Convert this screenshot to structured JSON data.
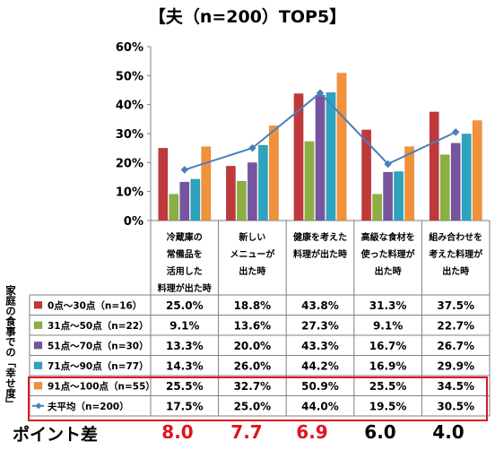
{
  "title": "【夫（n=200）TOP5】",
  "side_label": "家庭の食事での「幸せ度」",
  "point_diff_label": "ポイント差",
  "point_diffs": [
    {
      "value": "8.0",
      "color": "#e0141d"
    },
    {
      "value": "7.7",
      "color": "#e0141d"
    },
    {
      "value": "6.9",
      "color": "#e0141d"
    },
    {
      "value": "6.0",
      "color": "#000000"
    },
    {
      "value": "4.0",
      "color": "#000000"
    }
  ],
  "chart_data": {
    "type": "bar",
    "categories": [
      [
        "冷蔵庫の",
        "常備品を",
        "活用した",
        "料理が出た時"
      ],
      [
        "新しい",
        "メニューが",
        "出た時"
      ],
      [
        "健康を考えた",
        "料理が出た時"
      ],
      [
        "高級な食材を",
        "使った料理が",
        "出た時"
      ],
      [
        "組み合わせを",
        "考えた料理が",
        "出た時"
      ]
    ],
    "series": [
      {
        "name": "0点～30点（n=16）",
        "color": "#c0383a",
        "values": [
          25.0,
          18.8,
          43.8,
          31.3,
          37.5
        ],
        "labels": [
          "25.0%",
          "18.8%",
          "43.8%",
          "31.3%",
          "37.5%"
        ]
      },
      {
        "name": "31点～50点（n=22）",
        "color": "#8bb041",
        "values": [
          9.1,
          13.6,
          27.3,
          9.1,
          22.7
        ],
        "labels": [
          "9.1%",
          "13.6%",
          "27.3%",
          "9.1%",
          "22.7%"
        ]
      },
      {
        "name": "51点～70点（n=30）",
        "color": "#7555a0",
        "values": [
          13.3,
          20.0,
          43.3,
          16.7,
          26.7
        ],
        "labels": [
          "13.3%",
          "20.0%",
          "43.3%",
          "16.7%",
          "26.7%"
        ]
      },
      {
        "name": "71点～90点（n=77）",
        "color": "#2ea3bd",
        "values": [
          14.3,
          26.0,
          44.2,
          16.9,
          29.9
        ],
        "labels": [
          "14.3%",
          "26.0%",
          "44.2%",
          "16.9%",
          "29.9%"
        ]
      },
      {
        "name": "91点～100点（n=55）",
        "color": "#f1913a",
        "values": [
          25.5,
          32.7,
          50.9,
          25.5,
          34.5
        ],
        "labels": [
          "25.5%",
          "32.7%",
          "50.9%",
          "25.5%",
          "34.5%"
        ]
      }
    ],
    "line_series": {
      "name": "夫平均（n=200）",
      "color": "#4a7ebb",
      "values": [
        17.5,
        25.0,
        44.0,
        19.5,
        30.5
      ],
      "labels": [
        "17.5%",
        "25.0%",
        "44.0%",
        "19.5%",
        "30.5%"
      ]
    },
    "y_ticks": [
      "0%",
      "10%",
      "20%",
      "30%",
      "40%",
      "50%",
      "60%"
    ],
    "ylim": [
      0,
      60
    ],
    "grid": false,
    "legend": "table-rows-left"
  }
}
